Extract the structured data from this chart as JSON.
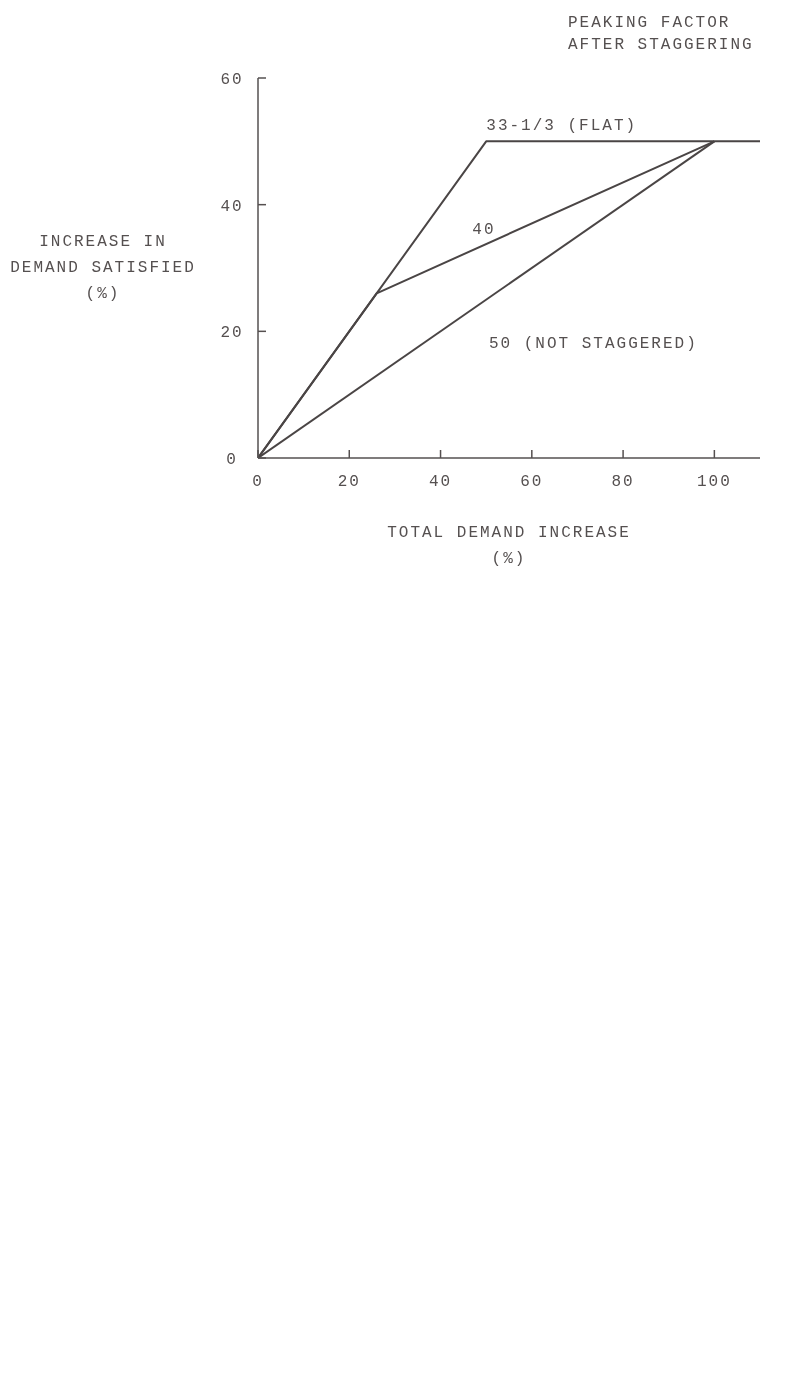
{
  "chart_data": {
    "type": "line",
    "legend_title": "PEAKING FACTOR\nAFTER STAGGERING",
    "xlabel": "TOTAL DEMAND INCREASE\n(%)",
    "ylabel": "INCREASE IN\nDEMAND SATISFIED\n(%)",
    "xlim": [
      0,
      110
    ],
    "xticks": [
      0,
      20,
      40,
      60,
      80,
      100
    ],
    "ylim": [
      0,
      60
    ],
    "yticks": [
      0,
      20,
      40,
      60
    ],
    "series": [
      {
        "name": "33-1/3 (FLAT)",
        "color": "#4a4545",
        "x": [
          0,
          50,
          110
        ],
        "values": [
          0,
          50,
          50
        ]
      },
      {
        "name": "40",
        "color": "#4a4545",
        "x": [
          0,
          26,
          100
        ],
        "values": [
          0,
          26,
          50
        ]
      },
      {
        "name": "50 (NOT STAGGERED)",
        "color": "#4a4545",
        "x": [
          0,
          100
        ],
        "values": [
          0,
          50
        ]
      }
    ]
  }
}
